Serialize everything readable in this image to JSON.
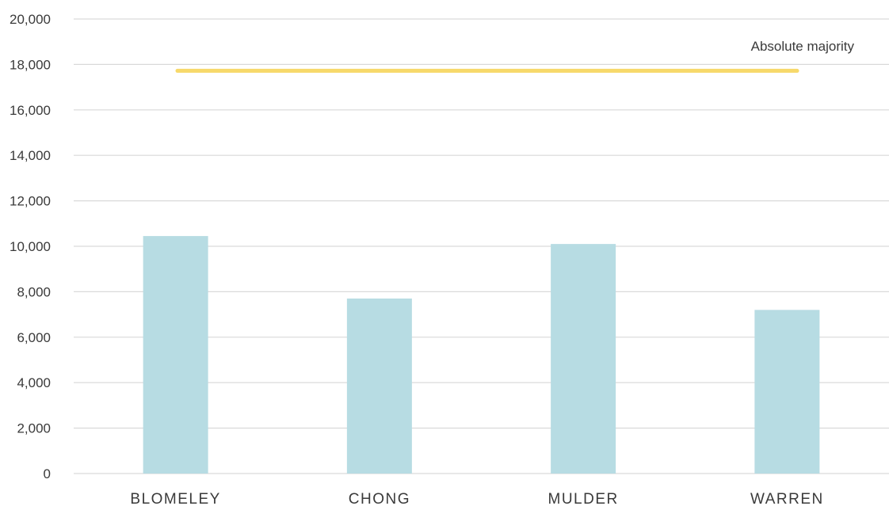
{
  "colors": {
    "bar": "#b7dce3",
    "majority_line": "#f7d96a",
    "grid": "#d9d9d9",
    "text": "#3a3a3a"
  },
  "chart_data": {
    "type": "bar",
    "title": "",
    "xlabel": "",
    "ylabel": "",
    "categories": [
      "BLOMELEY",
      "CHONG",
      "MULDER",
      "WARREN"
    ],
    "values": [
      10450,
      7700,
      10100,
      7200
    ],
    "ylim": [
      0,
      20000
    ],
    "yticks": [
      0,
      2000,
      4000,
      6000,
      8000,
      10000,
      12000,
      14000,
      16000,
      18000,
      20000
    ],
    "ytick_labels": [
      "0",
      "2,000",
      "4,000",
      "6,000",
      "8,000",
      "10,000",
      "12,000",
      "14,000",
      "16,000",
      "18,000",
      "20,000"
    ],
    "grid": true,
    "legend": "none",
    "reference_line": {
      "label": "Absolute majority",
      "value": 17720
    }
  }
}
